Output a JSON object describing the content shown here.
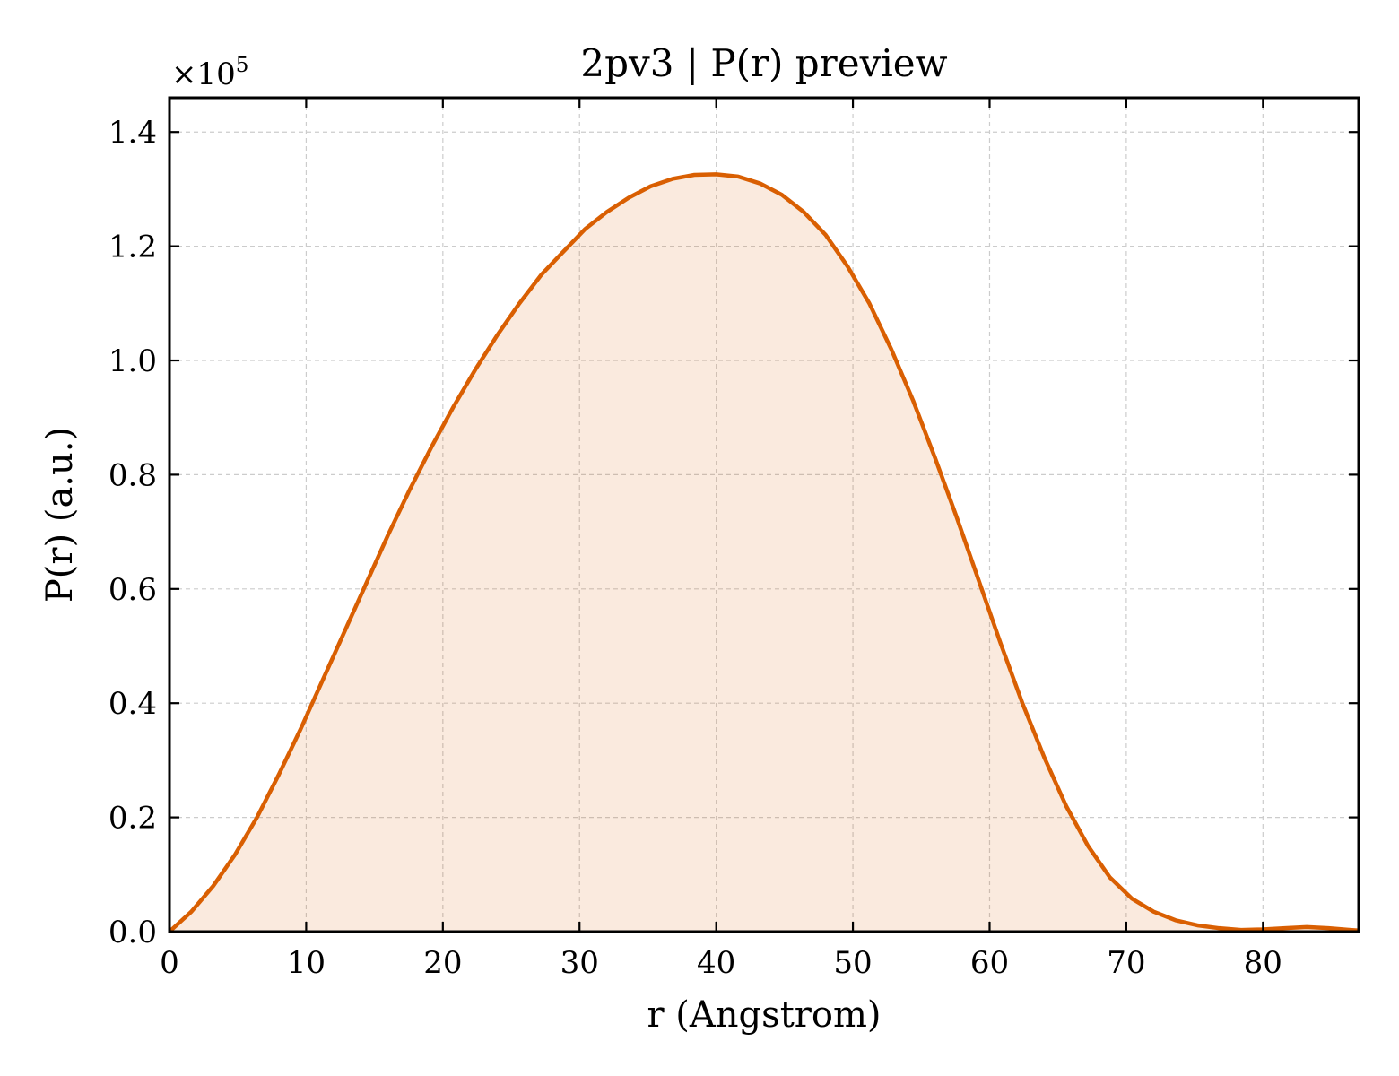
{
  "chart_data": {
    "type": "area",
    "title": "2pv3 | P(r) preview",
    "xlabel": "r (Angstrom)",
    "ylabel": "P(r) (a.u.)",
    "y_scale_note": "×10",
    "y_scale_exponent": "5",
    "xlim": [
      0,
      87
    ],
    "ylim": [
      0,
      1.46
    ],
    "xticks": [
      0,
      10,
      20,
      30,
      40,
      50,
      60,
      70,
      80
    ],
    "xtick_labels": [
      "0",
      "10",
      "20",
      "30",
      "40",
      "50",
      "60",
      "70",
      "80"
    ],
    "yticks": [
      0.0,
      0.2,
      0.4,
      0.6,
      0.8,
      1.0,
      1.2,
      1.4
    ],
    "ytick_labels": [
      "0.0",
      "0.2",
      "0.4",
      "0.6",
      "0.8",
      "1.0",
      "1.2",
      "1.4"
    ],
    "grid": true,
    "legend": "none",
    "line_color": "#d95f02",
    "fill_color": "#d95f02",
    "series": [
      {
        "x": [
          0,
          1.6,
          3.2,
          4.8,
          6.4,
          8.0,
          9.6,
          11.2,
          12.8,
          14.4,
          16.0,
          17.6,
          19.2,
          20.8,
          22.4,
          24.0,
          25.6,
          27.2,
          28.8,
          30.4,
          32.0,
          33.6,
          35.2,
          36.8,
          38.4,
          40.0,
          41.6,
          43.2,
          44.8,
          46.4,
          48.0,
          49.6,
          51.2,
          52.8,
          54.4,
          56.0,
          57.6,
          59.2,
          60.8,
          62.4,
          64.0,
          65.6,
          67.2,
          68.8,
          70.4,
          72.0,
          73.6,
          75.2,
          76.8,
          78.4,
          80.0,
          81.6,
          83.2,
          84.8,
          86.4,
          87.0
        ],
        "values": [
          0.0,
          0.035,
          0.08,
          0.135,
          0.2,
          0.275,
          0.355,
          0.44,
          0.525,
          0.61,
          0.695,
          0.775,
          0.85,
          0.92,
          0.985,
          1.045,
          1.1,
          1.15,
          1.19,
          1.23,
          1.26,
          1.285,
          1.305,
          1.318,
          1.325,
          1.326,
          1.322,
          1.31,
          1.29,
          1.26,
          1.22,
          1.165,
          1.1,
          1.02,
          0.93,
          0.83,
          0.725,
          0.615,
          0.505,
          0.4,
          0.305,
          0.22,
          0.15,
          0.095,
          0.058,
          0.035,
          0.02,
          0.011,
          0.006,
          0.003,
          0.004,
          0.006,
          0.008,
          0.006,
          0.003,
          0.002
        ]
      }
    ]
  }
}
